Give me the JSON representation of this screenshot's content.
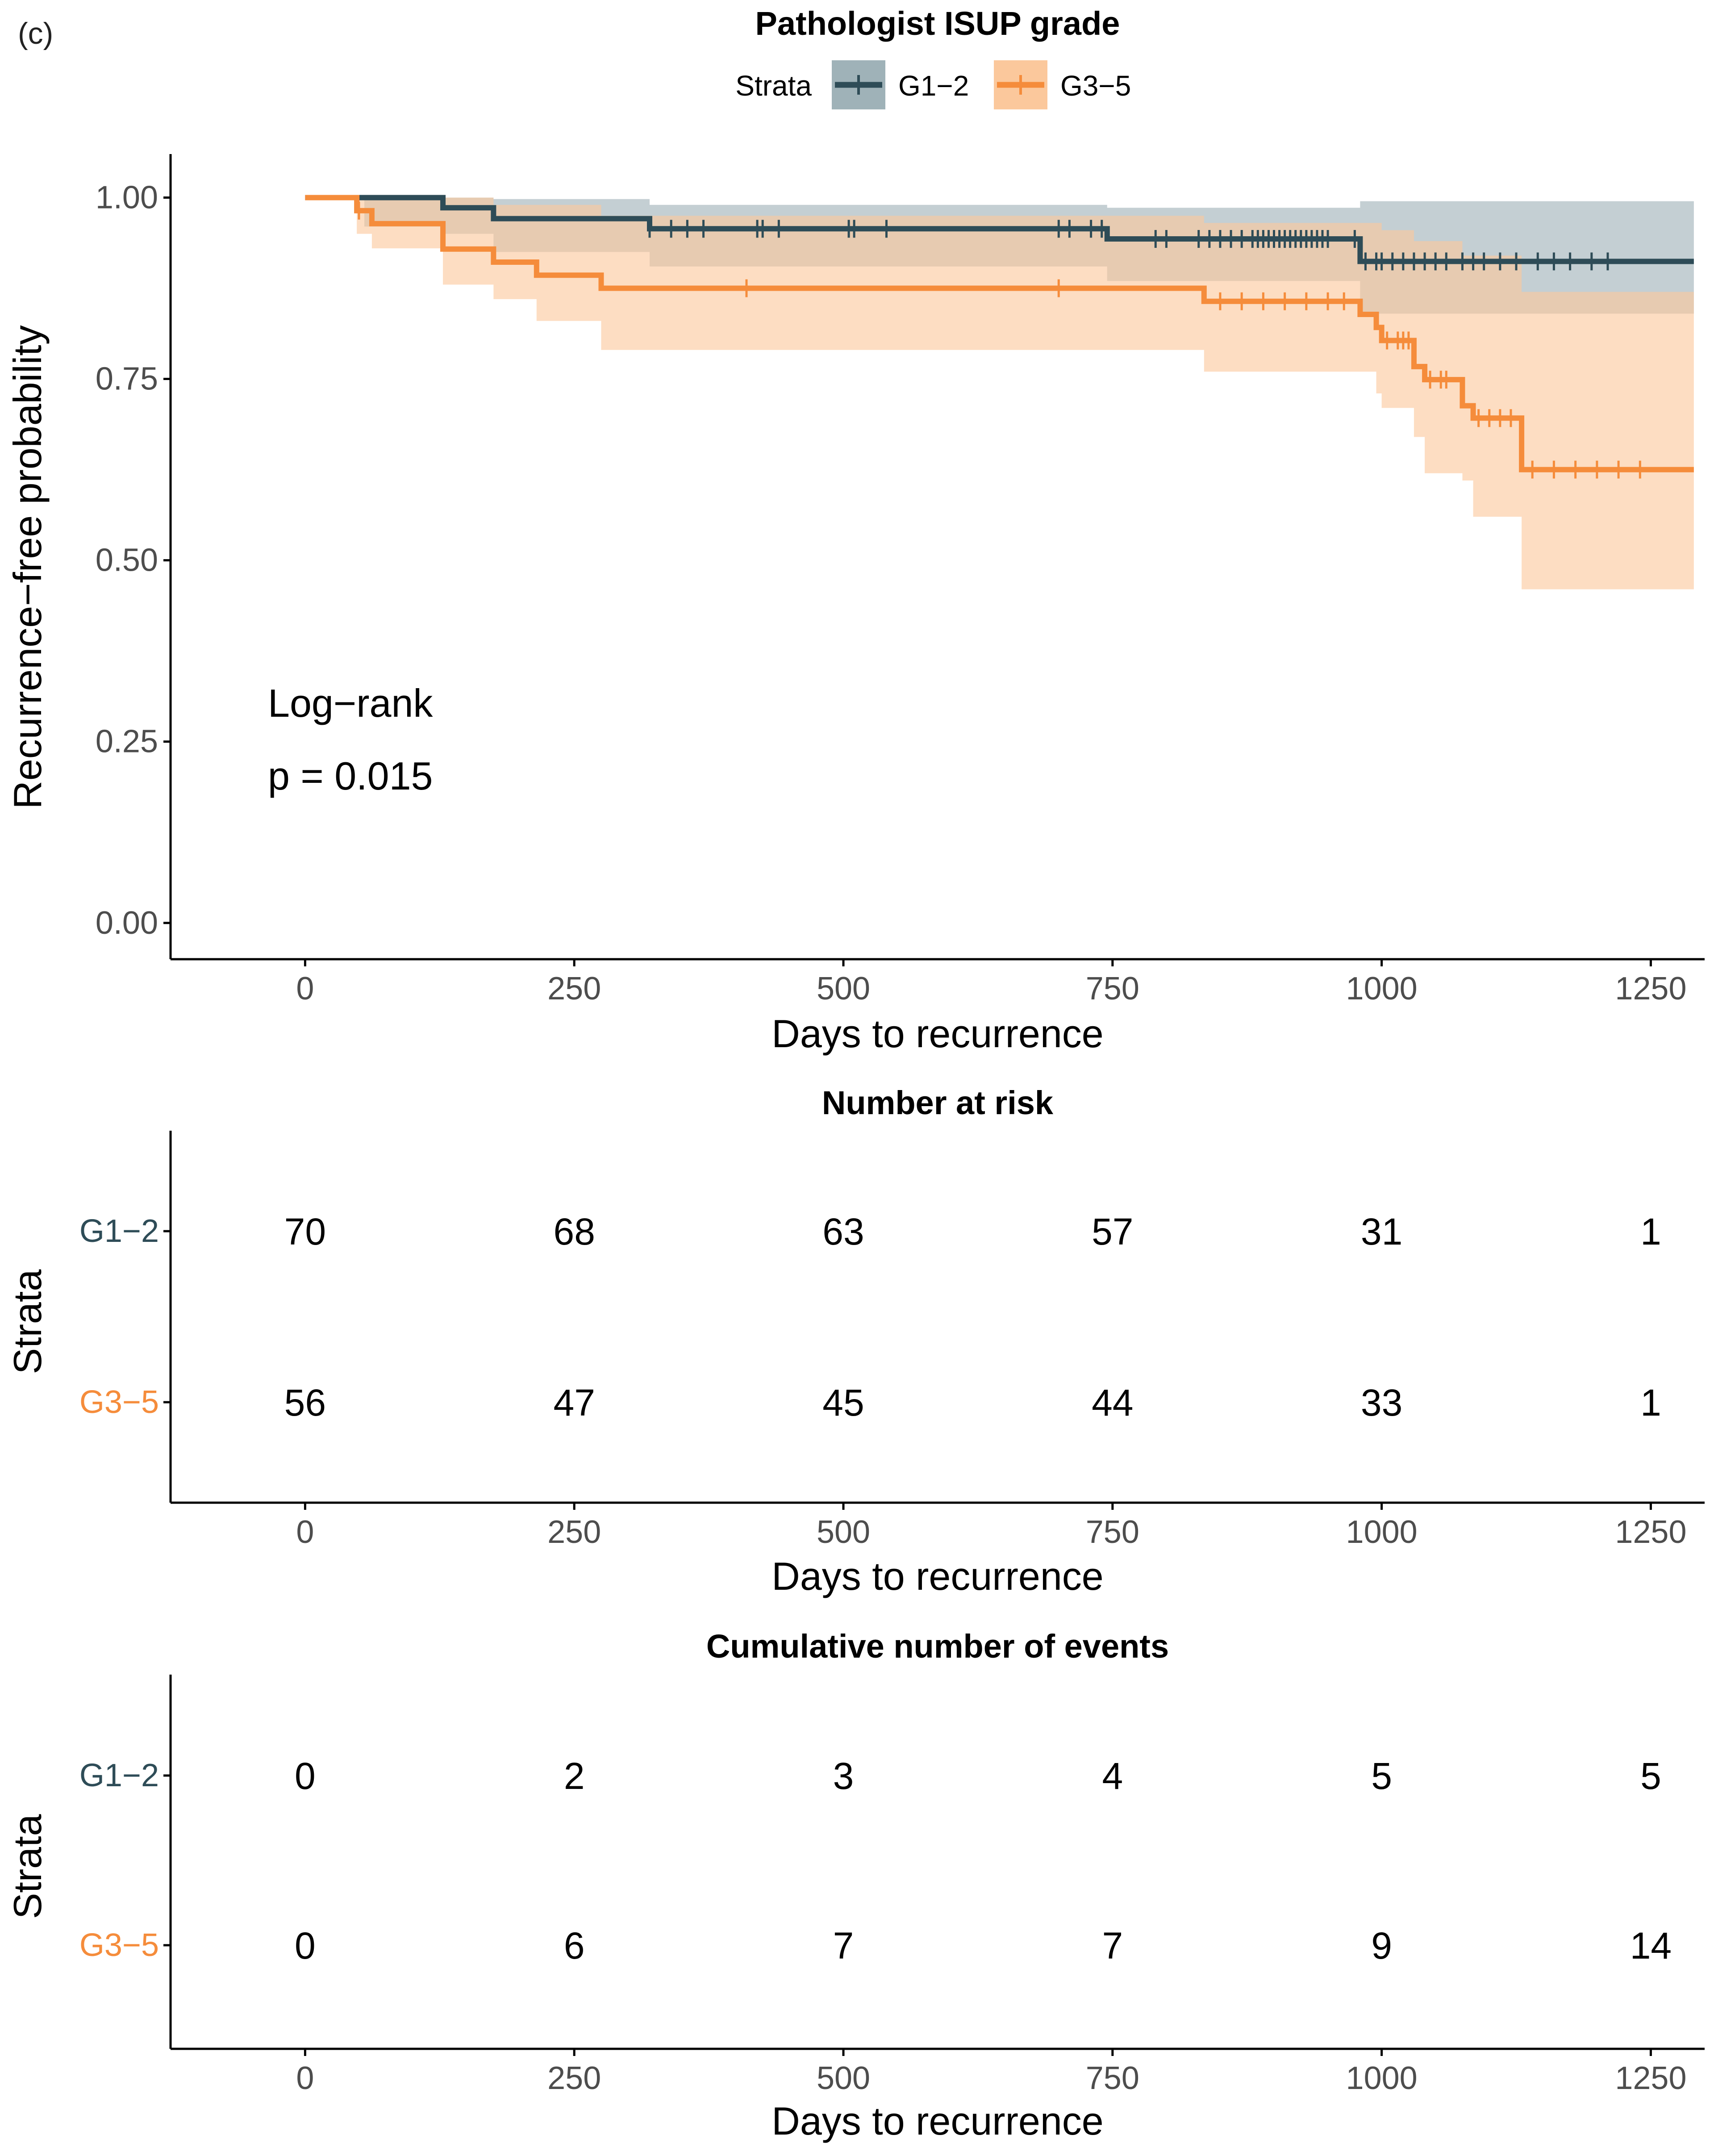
{
  "panel_label": "(c)",
  "colors": {
    "g12": "#2e4c57",
    "g35": "#f58c3b",
    "g12_band": "#9fb2b8",
    "g35_band": "#fbc89c",
    "axis": "#000000",
    "tick_label": "#4d4d4d"
  },
  "chart_data": [
    {
      "type": "line",
      "subtype": "kaplan-meier",
      "title": "Pathologist ISUP grade",
      "legend": {
        "title": "Strata",
        "placement": "top",
        "entries": [
          "G1−2",
          "G3−5"
        ]
      },
      "xlabel": "Days to recurrence",
      "ylabel": "Recurrence−free probability",
      "xlim": [
        -125,
        1300
      ],
      "ylim": [
        -0.05,
        1.06
      ],
      "xticks": [
        0,
        250,
        500,
        750,
        1000,
        1250
      ],
      "xtick_labels": [
        "0",
        "250",
        "500",
        "750",
        "1000",
        "1250"
      ],
      "yticks": [
        0,
        0.25,
        0.5,
        0.75,
        1
      ],
      "ytick_labels": [
        "0.00",
        "0.25",
        "0.50",
        "0.75",
        "1.00"
      ],
      "annotation": [
        "Log−rank",
        "p = 0.015"
      ],
      "series": [
        {
          "name": "G1−2",
          "color": "#2e4c57",
          "steps": [
            [
              0,
              1.0
            ],
            [
              128,
              0.986
            ],
            [
              175,
              0.971
            ],
            [
              320,
              0.957
            ],
            [
              745,
              0.943
            ],
            [
              980,
              0.912
            ],
            [
              1290,
              0.912
            ]
          ],
          "ci_upper": [
            [
              0,
              1.0
            ],
            [
              128,
              1.0
            ],
            [
              175,
              0.998
            ],
            [
              320,
              0.99
            ],
            [
              745,
              0.986
            ],
            [
              980,
              0.995
            ],
            [
              1290,
              0.995
            ]
          ],
          "ci_lower": [
            [
              0,
              1.0
            ],
            [
              55,
              0.96
            ],
            [
              128,
              0.95
            ],
            [
              175,
              0.925
            ],
            [
              320,
              0.905
            ],
            [
              745,
              0.885
            ],
            [
              980,
              0.84
            ],
            [
              1290,
              0.84
            ]
          ],
          "censor_times": [
            320,
            340,
            355,
            370,
            420,
            425,
            440,
            505,
            510,
            540,
            700,
            710,
            730,
            740,
            790,
            800,
            830,
            840,
            850,
            860,
            870,
            880,
            885,
            890,
            895,
            900,
            905,
            910,
            915,
            920,
            925,
            930,
            935,
            940,
            945,
            950,
            975,
            985,
            995,
            1000,
            1010,
            1020,
            1030,
            1040,
            1050,
            1060,
            1075,
            1085,
            1095,
            1110,
            1125,
            1145,
            1160,
            1175,
            1195,
            1210
          ]
        },
        {
          "name": "G3−5",
          "color": "#f58c3b",
          "steps": [
            [
              0,
              1.0
            ],
            [
              48,
              0.982
            ],
            [
              62,
              0.964
            ],
            [
              128,
              0.929
            ],
            [
              175,
              0.911
            ],
            [
              215,
              0.893
            ],
            [
              275,
              0.875
            ],
            [
              835,
              0.857
            ],
            [
              980,
              0.839
            ],
            [
              995,
              0.821
            ],
            [
              1000,
              0.803
            ],
            [
              1030,
              0.767
            ],
            [
              1040,
              0.749
            ],
            [
              1075,
              0.713
            ],
            [
              1085,
              0.696
            ],
            [
              1130,
              0.625
            ],
            [
              1290,
              0.625
            ]
          ],
          "ci_upper": [
            [
              0,
              1.0
            ],
            [
              48,
              1.0
            ],
            [
              175,
              0.99
            ],
            [
              275,
              0.975
            ],
            [
              835,
              0.965
            ],
            [
              1000,
              0.955
            ],
            [
              1030,
              0.94
            ],
            [
              1075,
              0.92
            ],
            [
              1130,
              0.87
            ],
            [
              1290,
              0.87
            ]
          ],
          "ci_lower": [
            [
              0,
              1.0
            ],
            [
              48,
              0.95
            ],
            [
              62,
              0.93
            ],
            [
              128,
              0.88
            ],
            [
              175,
              0.86
            ],
            [
              215,
              0.83
            ],
            [
              275,
              0.79
            ],
            [
              835,
              0.76
            ],
            [
              995,
              0.73
            ],
            [
              1000,
              0.71
            ],
            [
              1030,
              0.67
            ],
            [
              1040,
              0.62
            ],
            [
              1075,
              0.61
            ],
            [
              1085,
              0.56
            ],
            [
              1130,
              0.46
            ],
            [
              1290,
              0.46
            ]
          ],
          "censor_times": [
            50,
            410,
            700,
            850,
            870,
            890,
            910,
            930,
            950,
            965,
            1005,
            1015,
            1020,
            1025,
            1045,
            1055,
            1060,
            1090,
            1100,
            1110,
            1120,
            1140,
            1160,
            1180,
            1200,
            1220,
            1240
          ]
        }
      ]
    },
    {
      "type": "table",
      "title": "Number at risk",
      "row_title": "Strata",
      "xlabel": "Days to recurrence",
      "x": [
        0,
        250,
        500,
        750,
        1000,
        1250
      ],
      "xtick_labels": [
        "0",
        "250",
        "500",
        "750",
        "1000",
        "1250"
      ],
      "rows": [
        {
          "name": "G1−2",
          "color": "#2e4c57",
          "values": [
            "70",
            "68",
            "63",
            "57",
            "31",
            "1"
          ]
        },
        {
          "name": "G3−5",
          "color": "#f58c3b",
          "values": [
            "56",
            "47",
            "45",
            "44",
            "33",
            "1"
          ]
        }
      ]
    },
    {
      "type": "table",
      "title": "Cumulative number of events",
      "row_title": "Strata",
      "xlabel": "Days to recurrence",
      "x": [
        0,
        250,
        500,
        750,
        1000,
        1250
      ],
      "xtick_labels": [
        "0",
        "250",
        "500",
        "750",
        "1000",
        "1250"
      ],
      "rows": [
        {
          "name": "G1−2",
          "color": "#2e4c57",
          "values": [
            "0",
            "2",
            "3",
            "4",
            "5",
            "5"
          ]
        },
        {
          "name": "G3−5",
          "color": "#f58c3b",
          "values": [
            "0",
            "6",
            "7",
            "7",
            "9",
            "14"
          ]
        }
      ]
    }
  ]
}
